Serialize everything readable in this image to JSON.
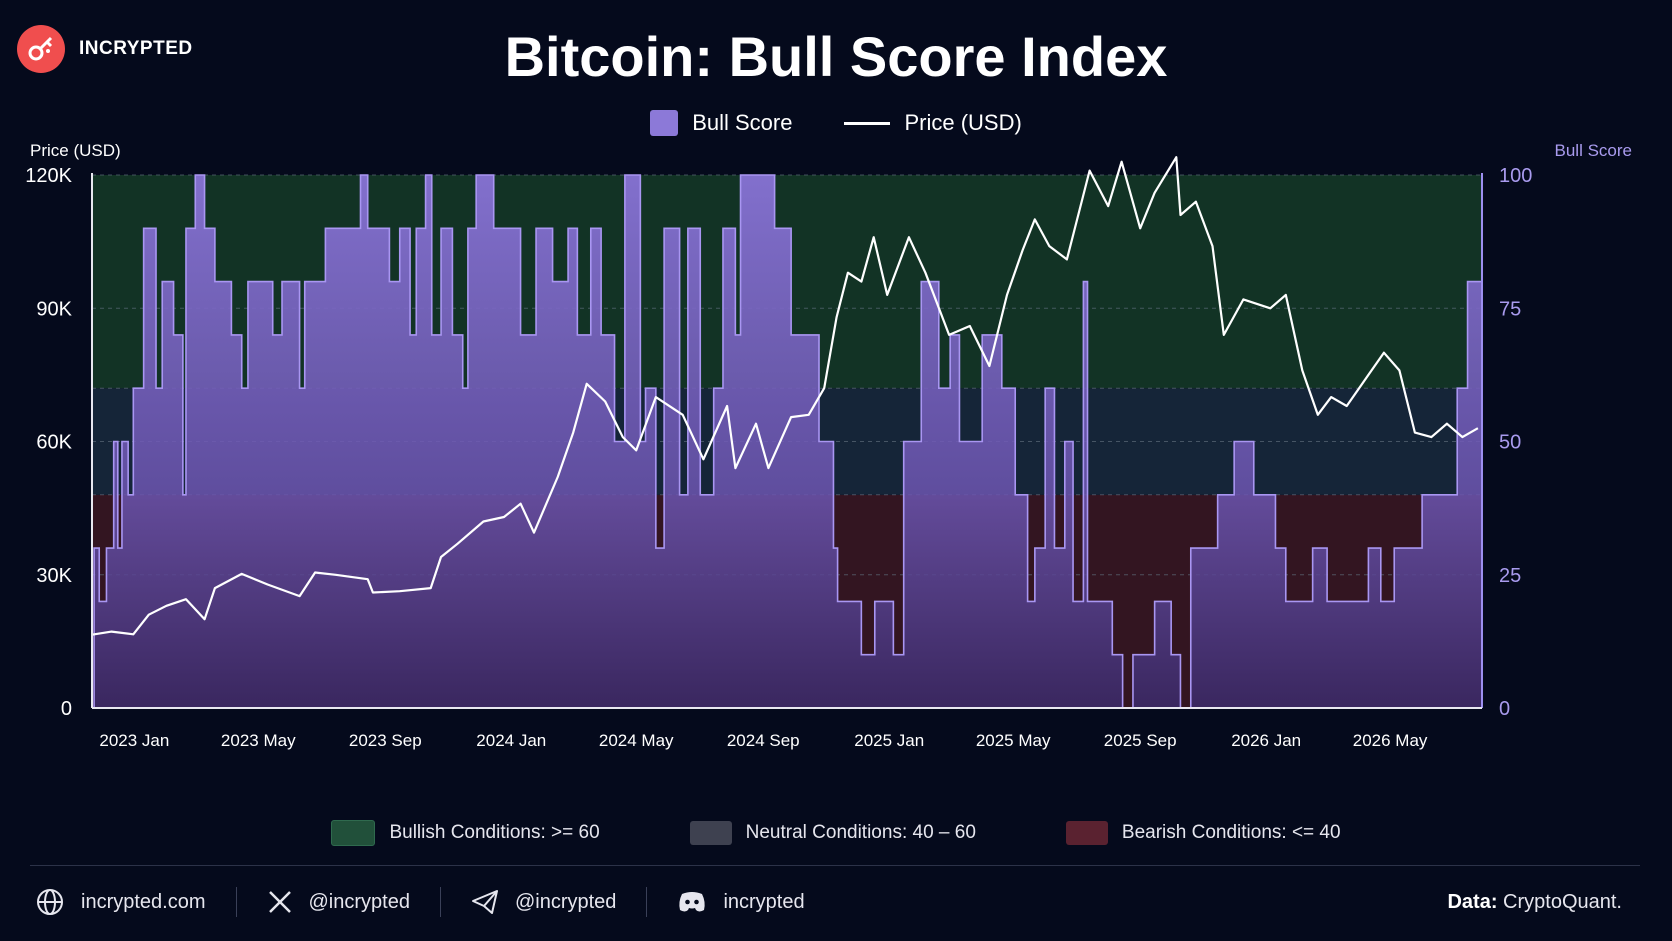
{
  "brand": {
    "name": "INCRYPTED"
  },
  "title": "Bitcoin: Bull Score Index",
  "legend": {
    "bull_score": "Bull Score",
    "price": "Price (USD)"
  },
  "axis": {
    "left_title": "Price (USD)",
    "right_title": "Bull Score"
  },
  "zones": {
    "bullish": "Bullish Conditions: >= 60",
    "neutral": "Neutral Conditions: 40 – 60",
    "bearish": "Bearish Conditions: <= 40"
  },
  "colors": {
    "background": "#050a1c",
    "bullish_zone": "#123325",
    "neutral_zone": "#152538",
    "bearish_zone": "#331521",
    "bull_score": "#8c79d8",
    "price_line": "#ffffff",
    "brand": "#f04e4e"
  },
  "footer": {
    "website": "incrypted.com",
    "x": "@incrypted",
    "telegram": "@incrypted",
    "discord": "incrypted",
    "data_label": "Data:",
    "data_source": "CryptoQuant."
  },
  "chart_data": {
    "type": "line",
    "x_range": [
      "2022-11-21",
      "2026-07-29"
    ],
    "left_axis": {
      "label": "Price (USD)",
      "ticks": [
        "0",
        "30K",
        "60K",
        "90K",
        "120K"
      ],
      "tick_values": [
        0,
        30000,
        60000,
        90000,
        120000
      ],
      "ylim": [
        0,
        120000
      ]
    },
    "right_axis": {
      "label": "Bull Score",
      "ticks": [
        "0",
        "25",
        "50",
        "75",
        "100"
      ],
      "tick_values": [
        0,
        25,
        50,
        75,
        100
      ],
      "ylim": [
        0,
        100
      ]
    },
    "x_ticks": [
      {
        "label": "2023 Jan",
        "date": "2023-01-01"
      },
      {
        "label": "2023 May",
        "date": "2023-05-01"
      },
      {
        "label": "2023 Sep",
        "date": "2023-09-01"
      },
      {
        "label": "2024 Jan",
        "date": "2024-01-01"
      },
      {
        "label": "2024 May",
        "date": "2024-05-01"
      },
      {
        "label": "2024 Sep",
        "date": "2024-09-01"
      },
      {
        "label": "2025 Jan",
        "date": "2025-01-01"
      },
      {
        "label": "2025 May",
        "date": "2025-05-01"
      },
      {
        "label": "2025 Sep",
        "date": "2025-09-01"
      },
      {
        "label": "2026 Jan",
        "date": "2026-01-01"
      },
      {
        "label": "2026 May",
        "date": "2026-05-01"
      }
    ],
    "zones": [
      {
        "name": "Bearish Conditions: <= 40",
        "from": 0,
        "to": 40
      },
      {
        "name": "Neutral Conditions: 40 – 60",
        "from": 40,
        "to": 60
      },
      {
        "name": "Bullish Conditions: >= 60",
        "from": 60,
        "to": 100
      }
    ],
    "series": [
      {
        "name": "Bull Score",
        "style": "step-area",
        "axis": "right",
        "points": [
          [
            "2022-11-21",
            0
          ],
          [
            "2022-11-23",
            30
          ],
          [
            "2022-11-28",
            20
          ],
          [
            "2022-12-05",
            30
          ],
          [
            "2022-12-12",
            50
          ],
          [
            "2022-12-16",
            30
          ],
          [
            "2022-12-20",
            50
          ],
          [
            "2022-12-26",
            40
          ],
          [
            "2022-12-31",
            60
          ],
          [
            "2023-01-10",
            90
          ],
          [
            "2023-01-22",
            60
          ],
          [
            "2023-01-28",
            80
          ],
          [
            "2023-02-08",
            70
          ],
          [
            "2023-02-17",
            40
          ],
          [
            "2023-02-20",
            90
          ],
          [
            "2023-03-01",
            100
          ],
          [
            "2023-03-10",
            90
          ],
          [
            "2023-03-20",
            80
          ],
          [
            "2023-04-05",
            70
          ],
          [
            "2023-04-15",
            60
          ],
          [
            "2023-04-21",
            80
          ],
          [
            "2023-05-15",
            70
          ],
          [
            "2023-05-24",
            80
          ],
          [
            "2023-06-10",
            60
          ],
          [
            "2023-06-15",
            80
          ],
          [
            "2023-07-05",
            90
          ],
          [
            "2023-07-25",
            90
          ],
          [
            "2023-08-08",
            100
          ],
          [
            "2023-08-15",
            90
          ],
          [
            "2023-09-05",
            80
          ],
          [
            "2023-09-15",
            90
          ],
          [
            "2023-09-25",
            70
          ],
          [
            "2023-10-01",
            90
          ],
          [
            "2023-10-10",
            100
          ],
          [
            "2023-10-16",
            70
          ],
          [
            "2023-10-25",
            90
          ],
          [
            "2023-11-05",
            70
          ],
          [
            "2023-11-15",
            60
          ],
          [
            "2023-11-20",
            90
          ],
          [
            "2023-11-28",
            100
          ],
          [
            "2023-12-15",
            90
          ],
          [
            "2024-01-10",
            70
          ],
          [
            "2024-01-25",
            90
          ],
          [
            "2024-02-10",
            80
          ],
          [
            "2024-02-25",
            90
          ],
          [
            "2024-03-05",
            70
          ],
          [
            "2024-03-18",
            90
          ],
          [
            "2024-03-28",
            70
          ],
          [
            "2024-04-10",
            50
          ],
          [
            "2024-04-20",
            100
          ],
          [
            "2024-05-05",
            50
          ],
          [
            "2024-05-10",
            60
          ],
          [
            "2024-05-20",
            30
          ],
          [
            "2024-05-28",
            90
          ],
          [
            "2024-06-12",
            40
          ],
          [
            "2024-06-20",
            90
          ],
          [
            "2024-07-02",
            40
          ],
          [
            "2024-07-15",
            60
          ],
          [
            "2024-07-24",
            90
          ],
          [
            "2024-08-05",
            70
          ],
          [
            "2024-08-10",
            100
          ],
          [
            "2024-09-12",
            90
          ],
          [
            "2024-09-28",
            70
          ],
          [
            "2024-10-25",
            50
          ],
          [
            "2024-11-08",
            30
          ],
          [
            "2024-11-12",
            20
          ],
          [
            "2024-12-05",
            10
          ],
          [
            "2024-12-18",
            20
          ],
          [
            "2025-01-05",
            10
          ],
          [
            "2025-01-15",
            50
          ],
          [
            "2025-02-01",
            80
          ],
          [
            "2025-02-18",
            60
          ],
          [
            "2025-03-01",
            70
          ],
          [
            "2025-03-10",
            50
          ],
          [
            "2025-04-01",
            70
          ],
          [
            "2025-04-20",
            60
          ],
          [
            "2025-05-03",
            40
          ],
          [
            "2025-05-15",
            20
          ],
          [
            "2025-05-22",
            30
          ],
          [
            "2025-06-01",
            60
          ],
          [
            "2025-06-10",
            30
          ],
          [
            "2025-06-20",
            50
          ],
          [
            "2025-06-28",
            20
          ],
          [
            "2025-07-08",
            80
          ],
          [
            "2025-07-12",
            20
          ],
          [
            "2025-07-25",
            20
          ],
          [
            "2025-08-05",
            10
          ],
          [
            "2025-08-15",
            0
          ],
          [
            "2025-08-25",
            10
          ],
          [
            "2025-09-15",
            20
          ],
          [
            "2025-10-01",
            10
          ],
          [
            "2025-10-10",
            0
          ],
          [
            "2025-10-20",
            30
          ],
          [
            "2025-11-15",
            40
          ],
          [
            "2025-12-01",
            50
          ],
          [
            "2025-12-20",
            40
          ],
          [
            "2026-01-10",
            30
          ],
          [
            "2026-01-20",
            20
          ],
          [
            "2026-02-15",
            30
          ],
          [
            "2026-03-01",
            20
          ],
          [
            "2026-04-10",
            30
          ],
          [
            "2026-04-22",
            20
          ],
          [
            "2026-05-05",
            30
          ],
          [
            "2026-05-15",
            30
          ],
          [
            "2026-06-01",
            40
          ],
          [
            "2026-06-25",
            40
          ],
          [
            "2026-07-05",
            60
          ],
          [
            "2026-07-15",
            80
          ],
          [
            "2026-07-29",
            80
          ]
        ]
      },
      {
        "name": "Price (USD)",
        "style": "line",
        "axis": "left",
        "points": [
          [
            "2022-11-21",
            16500
          ],
          [
            "2022-12-10",
            17200
          ],
          [
            "2022-12-31",
            16600
          ],
          [
            "2023-01-15",
            21000
          ],
          [
            "2023-02-01",
            23000
          ],
          [
            "2023-02-20",
            24500
          ],
          [
            "2023-03-10",
            20000
          ],
          [
            "2023-03-20",
            27000
          ],
          [
            "2023-04-15",
            30200
          ],
          [
            "2023-05-10",
            27800
          ],
          [
            "2023-06-10",
            25200
          ],
          [
            "2023-06-25",
            30500
          ],
          [
            "2023-07-15",
            30000
          ],
          [
            "2023-08-15",
            29000
          ],
          [
            "2023-08-20",
            26000
          ],
          [
            "2023-09-15",
            26300
          ],
          [
            "2023-10-15",
            27000
          ],
          [
            "2023-10-25",
            34000
          ],
          [
            "2023-11-10",
            37000
          ],
          [
            "2023-12-05",
            42000
          ],
          [
            "2023-12-25",
            43000
          ],
          [
            "2024-01-10",
            46000
          ],
          [
            "2024-01-23",
            39500
          ],
          [
            "2024-02-15",
            52000
          ],
          [
            "2024-03-01",
            62000
          ],
          [
            "2024-03-14",
            73000
          ],
          [
            "2024-04-01",
            69000
          ],
          [
            "2024-04-18",
            61000
          ],
          [
            "2024-05-01",
            58000
          ],
          [
            "2024-05-20",
            70000
          ],
          [
            "2024-06-15",
            66000
          ],
          [
            "2024-07-05",
            56000
          ],
          [
            "2024-07-28",
            68000
          ],
          [
            "2024-08-05",
            54000
          ],
          [
            "2024-08-25",
            64000
          ],
          [
            "2024-09-06",
            54000
          ],
          [
            "2024-09-28",
            65500
          ],
          [
            "2024-10-15",
            66000
          ],
          [
            "2024-10-30",
            72000
          ],
          [
            "2024-11-11",
            88000
          ],
          [
            "2024-11-22",
            98000
          ],
          [
            "2024-12-05",
            96000
          ],
          [
            "2024-12-17",
            106000
          ],
          [
            "2024-12-30",
            93000
          ],
          [
            "2025-01-20",
            106000
          ],
          [
            "2025-02-05",
            98000
          ],
          [
            "2025-02-28",
            84000
          ],
          [
            "2025-03-20",
            86000
          ],
          [
            "2025-04-08",
            77000
          ],
          [
            "2025-04-25",
            93000
          ],
          [
            "2025-05-10",
            103000
          ],
          [
            "2025-05-22",
            110000
          ],
          [
            "2025-06-05",
            104000
          ],
          [
            "2025-06-22",
            101000
          ],
          [
            "2025-07-14",
            121000
          ],
          [
            "2025-08-01",
            113000
          ],
          [
            "2025-08-14",
            123000
          ],
          [
            "2025-09-01",
            108000
          ],
          [
            "2025-09-15",
            116000
          ],
          [
            "2025-10-06",
            124000
          ],
          [
            "2025-10-10",
            111000
          ],
          [
            "2025-10-25",
            114000
          ],
          [
            "2025-11-10",
            104000
          ],
          [
            "2025-11-21",
            84000
          ],
          [
            "2025-12-10",
            92000
          ],
          [
            "2026-01-05",
            90000
          ],
          [
            "2026-01-20",
            93000
          ],
          [
            "2026-02-05",
            76000
          ],
          [
            "2026-02-20",
            66000
          ],
          [
            "2026-03-05",
            70000
          ],
          [
            "2026-03-20",
            68000
          ],
          [
            "2026-04-10",
            75000
          ],
          [
            "2026-04-25",
            80000
          ],
          [
            "2026-05-10",
            76000
          ],
          [
            "2026-05-25",
            62000
          ],
          [
            "2026-06-10",
            61000
          ],
          [
            "2026-06-25",
            64000
          ],
          [
            "2026-07-10",
            61000
          ],
          [
            "2026-07-25",
            63000
          ]
        ]
      }
    ]
  }
}
